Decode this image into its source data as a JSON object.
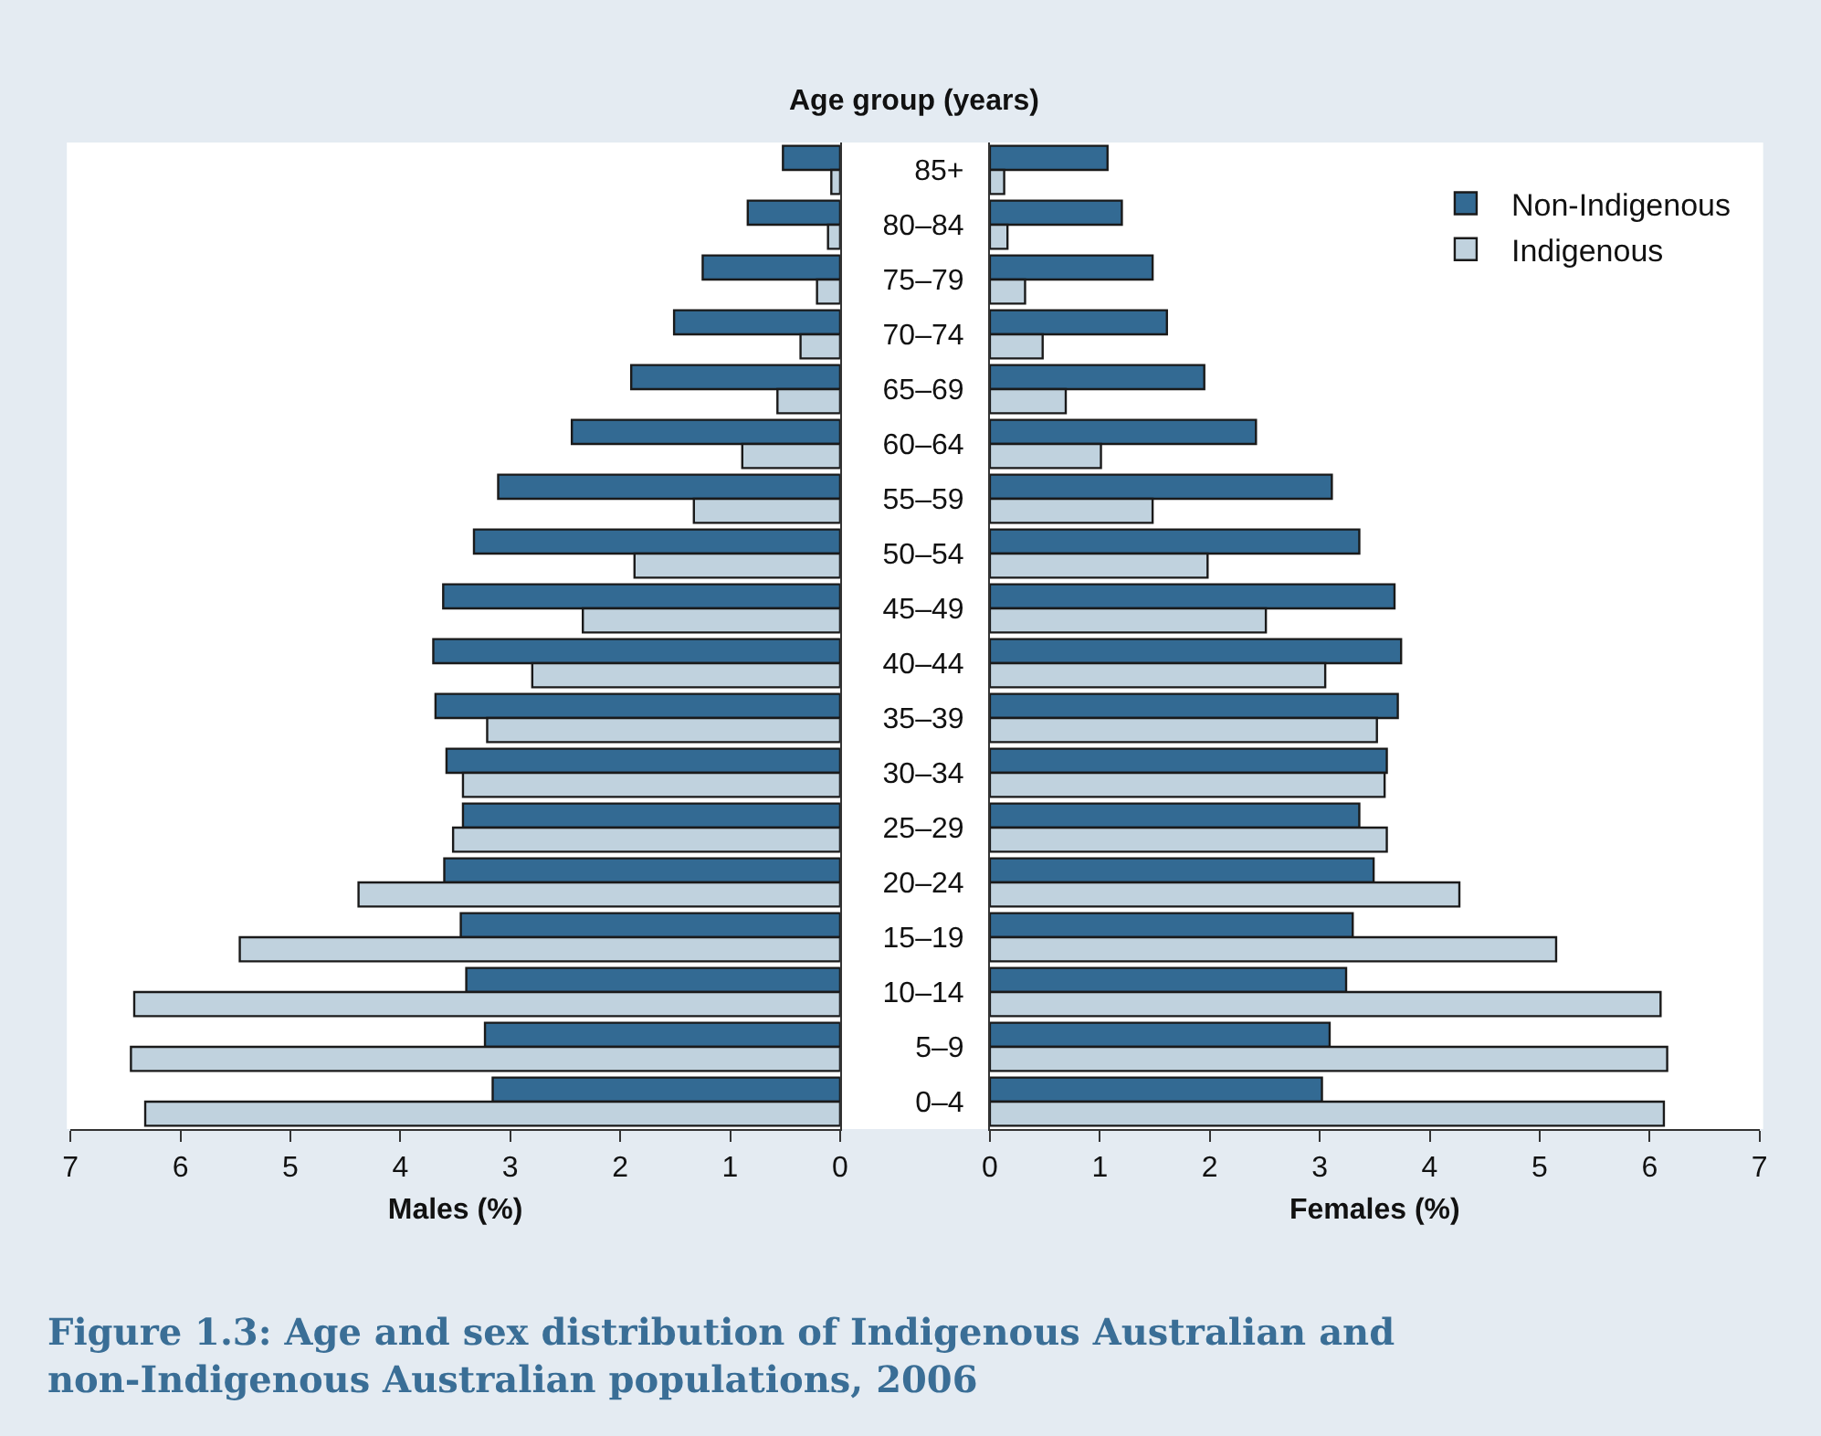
{
  "chart_data": [
    {
      "type": "bar",
      "orientation": "horizontal",
      "title": "Figure 1.3: Age and sex distribution of Indigenous Australian and non-Indigenous Australian populations, 2006",
      "xlabel": "Males (%)",
      "categories": [
        "85+",
        "80–84",
        "75–79",
        "70–74",
        "65–69",
        "60–64",
        "55–59",
        "50–54",
        "45–49",
        "40–44",
        "35–39",
        "30–34",
        "25–29",
        "20–24",
        "15–19",
        "10–14",
        "5–9",
        "0–4"
      ],
      "series": [
        {
          "color": "#336a93",
          "values": [
            0.52,
            0.84,
            1.25,
            1.51,
            1.9,
            2.44,
            3.11,
            3.33,
            3.61,
            3.7,
            3.68,
            3.58,
            3.43,
            3.6,
            3.45,
            3.4,
            3.23,
            3.16
          ]
        },
        {
          "color": "#c0d2de",
          "values": [
            0.08,
            0.11,
            0.21,
            0.36,
            0.57,
            0.89,
            1.33,
            1.87,
            2.34,
            2.8,
            3.21,
            3.43,
            3.52,
            4.38,
            5.46,
            6.42,
            6.45,
            6.32
          ]
        }
      ],
      "xlim": [
        7,
        0
      ],
      "xticks": [
        7,
        6,
        5,
        4,
        3,
        2,
        1,
        0
      ],
      "tick_labels": "x"
    },
    {
      "type": "bar",
      "orientation": "horizontal",
      "ylabel": "Age group (years)",
      "xlabel": "Females (%)",
      "categories": [
        "85+",
        "80–84",
        "75–79",
        "70–74",
        "65–69",
        "60–64",
        "55–59",
        "50–54",
        "45–49",
        "40–44",
        "35–39",
        "30–34",
        "25–29",
        "20–24",
        "15–19",
        "10–14",
        "5–9",
        "0–4"
      ],
      "series": [
        {
          "name": "Non-Indigenous",
          "color": "#336a93",
          "values": [
            1.07,
            1.2,
            1.48,
            1.61,
            1.95,
            2.42,
            3.11,
            3.36,
            3.68,
            3.74,
            3.71,
            3.61,
            3.36,
            3.49,
            3.3,
            3.24,
            3.09,
            3.02
          ]
        },
        {
          "name": "Indigenous",
          "color": "#c0d2de",
          "values": [
            0.13,
            0.16,
            0.32,
            0.48,
            0.69,
            1.01,
            1.48,
            1.98,
            2.51,
            3.05,
            3.52,
            3.59,
            3.61,
            4.27,
            5.15,
            6.1,
            6.16,
            6.13
          ]
        }
      ],
      "xlim": [
        0,
        7
      ],
      "xticks": [
        0,
        1,
        2,
        3,
        4,
        5,
        6,
        7
      ],
      "legend": "top right"
    }
  ]
}
